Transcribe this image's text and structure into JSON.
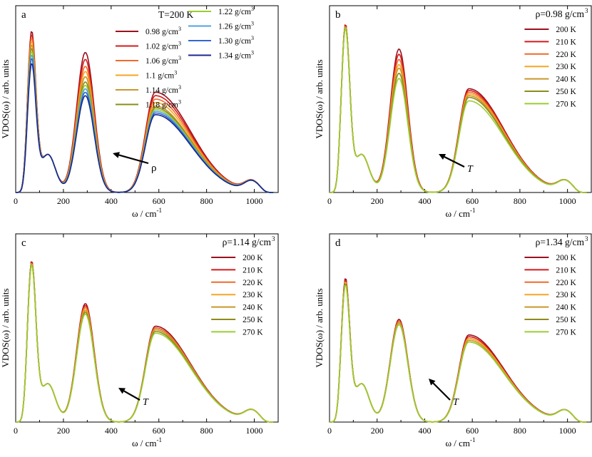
{
  "chart_data": [
    {
      "type": "line",
      "panel": "a",
      "header": "T=200 K",
      "xlabel": "ω / cm",
      "xlabel_sup": "-1",
      "ylabel": "VDOS(ω) / arb. units",
      "xlim": [
        0,
        1100
      ],
      "ylim": [
        0,
        1.08
      ],
      "xticks": [
        "0",
        "200",
        "400",
        "600",
        "800",
        "1000"
      ],
      "legend_layout": "two-columns",
      "arrow_label": "ρ",
      "series": [
        {
          "name": "0.98 g/cm",
          "unit_sup": "3",
          "color": "#9b111e",
          "p1": 0.93,
          "p2": 0.81,
          "p3": 0.58
        },
        {
          "name": "1.02 g/cm",
          "unit_sup": "3",
          "color": "#d7191c",
          "p1": 0.91,
          "p2": 0.77,
          "p3": 0.56
        },
        {
          "name": "1.06 g/cm",
          "unit_sup": "3",
          "color": "#ef6a2a",
          "p1": 0.89,
          "p2": 0.73,
          "p3": 0.54
        },
        {
          "name": "1.1 g/cm",
          "unit_sup": "3",
          "color": "#f5a623",
          "p1": 0.87,
          "p2": 0.7,
          "p3": 0.52
        },
        {
          "name": "1.14 g/cm",
          "unit_sup": "3",
          "color": "#c9962b",
          "p1": 0.85,
          "p2": 0.67,
          "p3": 0.5
        },
        {
          "name": "1.18 g/cm",
          "unit_sup": "3",
          "color": "#8c8c1a",
          "p1": 0.83,
          "p2": 0.64,
          "p3": 0.49
        },
        {
          "name": "1.22 g/cm",
          "unit_sup": "3",
          "color": "#9acd32",
          "p1": 0.81,
          "p2": 0.62,
          "p3": 0.48
        },
        {
          "name": "1.26 g/cm",
          "unit_sup": "3",
          "color": "#4fa3e0",
          "p1": 0.79,
          "p2": 0.6,
          "p3": 0.47
        },
        {
          "name": "1.30 g/cm",
          "unit_sup": "3",
          "color": "#3366cc",
          "p1": 0.77,
          "p2": 0.58,
          "p3": 0.46
        },
        {
          "name": "1.34 g/cm",
          "unit_sup": "3",
          "color": "#1a2a8c",
          "p1": 0.74,
          "p2": 0.56,
          "p3": 0.45
        }
      ]
    },
    {
      "type": "line",
      "panel": "b",
      "header": "ρ=0.98 g/cm",
      "header_sup": "3",
      "xlabel": "ω / cm",
      "xlabel_sup": "-1",
      "ylabel": "VDOS(ω) / arb. units",
      "xlim": [
        0,
        1100
      ],
      "ylim": [
        0,
        1.08
      ],
      "xticks": [
        "0",
        "200",
        "400",
        "600",
        "800",
        "1000"
      ],
      "legend_layout": "one-column",
      "arrow_label": "T",
      "series": [
        {
          "name": "200 K",
          "color": "#9b111e",
          "p1": 0.97,
          "p2": 0.83,
          "p3": 0.6
        },
        {
          "name": "210 K",
          "color": "#d7191c",
          "p1": 0.97,
          "p2": 0.8,
          "p3": 0.59
        },
        {
          "name": "220 K",
          "color": "#ef6a2a",
          "p1": 0.96,
          "p2": 0.77,
          "p3": 0.58
        },
        {
          "name": "230 K",
          "color": "#f5a623",
          "p1": 0.96,
          "p2": 0.74,
          "p3": 0.57
        },
        {
          "name": "240 K",
          "color": "#c9962b",
          "p1": 0.96,
          "p2": 0.72,
          "p3": 0.56
        },
        {
          "name": "250 K",
          "color": "#8c8c1a",
          "p1": 0.95,
          "p2": 0.69,
          "p3": 0.55
        },
        {
          "name": "270 K",
          "color": "#9acd32",
          "p1": 0.95,
          "p2": 0.66,
          "p3": 0.53
        }
      ]
    },
    {
      "type": "line",
      "panel": "c",
      "header": "ρ=1.14 g/cm",
      "header_sup": "3",
      "xlabel": "ω / cm",
      "xlabel_sup": "-1",
      "ylabel": "VDOS(ω) / arb. units",
      "xlim": [
        0,
        1100
      ],
      "ylim": [
        0,
        1.08
      ],
      "xticks": [
        "0",
        "200",
        "400",
        "600",
        "800",
        "1000"
      ],
      "legend_layout": "one-column",
      "arrow_label": "T",
      "series": [
        {
          "name": "200 K",
          "color": "#9b111e",
          "p1": 0.92,
          "p2": 0.68,
          "p3": 0.55
        },
        {
          "name": "210 K",
          "color": "#d7191c",
          "p1": 0.92,
          "p2": 0.67,
          "p3": 0.54
        },
        {
          "name": "220 K",
          "color": "#ef6a2a",
          "p1": 0.91,
          "p2": 0.66,
          "p3": 0.54
        },
        {
          "name": "230 K",
          "color": "#f5a623",
          "p1": 0.91,
          "p2": 0.65,
          "p3": 0.53
        },
        {
          "name": "240 K",
          "color": "#c9962b",
          "p1": 0.91,
          "p2": 0.64,
          "p3": 0.53
        },
        {
          "name": "250 K",
          "color": "#8c8c1a",
          "p1": 0.9,
          "p2": 0.63,
          "p3": 0.52
        },
        {
          "name": "270 K",
          "color": "#9acd32",
          "p1": 0.9,
          "p2": 0.62,
          "p3": 0.51
        }
      ]
    },
    {
      "type": "line",
      "panel": "d",
      "header": "ρ=1.34 g/cm",
      "header_sup": "3",
      "xlabel": "ω / cm",
      "xlabel_sup": "-1",
      "ylabel": "VDOS(ω) / arb. units",
      "xlim": [
        0,
        1100
      ],
      "ylim": [
        0,
        1.08
      ],
      "xticks": [
        "0",
        "200",
        "400",
        "600",
        "800",
        "1000"
      ],
      "legend_layout": "one-column",
      "arrow_label": "T",
      "series": [
        {
          "name": "200 K",
          "color": "#9b111e",
          "p1": 0.82,
          "p2": 0.59,
          "p3": 0.5
        },
        {
          "name": "210 K",
          "color": "#d7191c",
          "p1": 0.81,
          "p2": 0.58,
          "p3": 0.49
        },
        {
          "name": "220 K",
          "color": "#ef6a2a",
          "p1": 0.8,
          "p2": 0.58,
          "p3": 0.48
        },
        {
          "name": "230 K",
          "color": "#f5a623",
          "p1": 0.8,
          "p2": 0.57,
          "p3": 0.48
        },
        {
          "name": "240 K",
          "color": "#c9962b",
          "p1": 0.79,
          "p2": 0.57,
          "p3": 0.47
        },
        {
          "name": "250 K",
          "color": "#8c8c1a",
          "p1": 0.79,
          "p2": 0.56,
          "p3": 0.46
        },
        {
          "name": "270 K",
          "color": "#9acd32",
          "p1": 0.78,
          "p2": 0.56,
          "p3": 0.46
        }
      ]
    }
  ]
}
